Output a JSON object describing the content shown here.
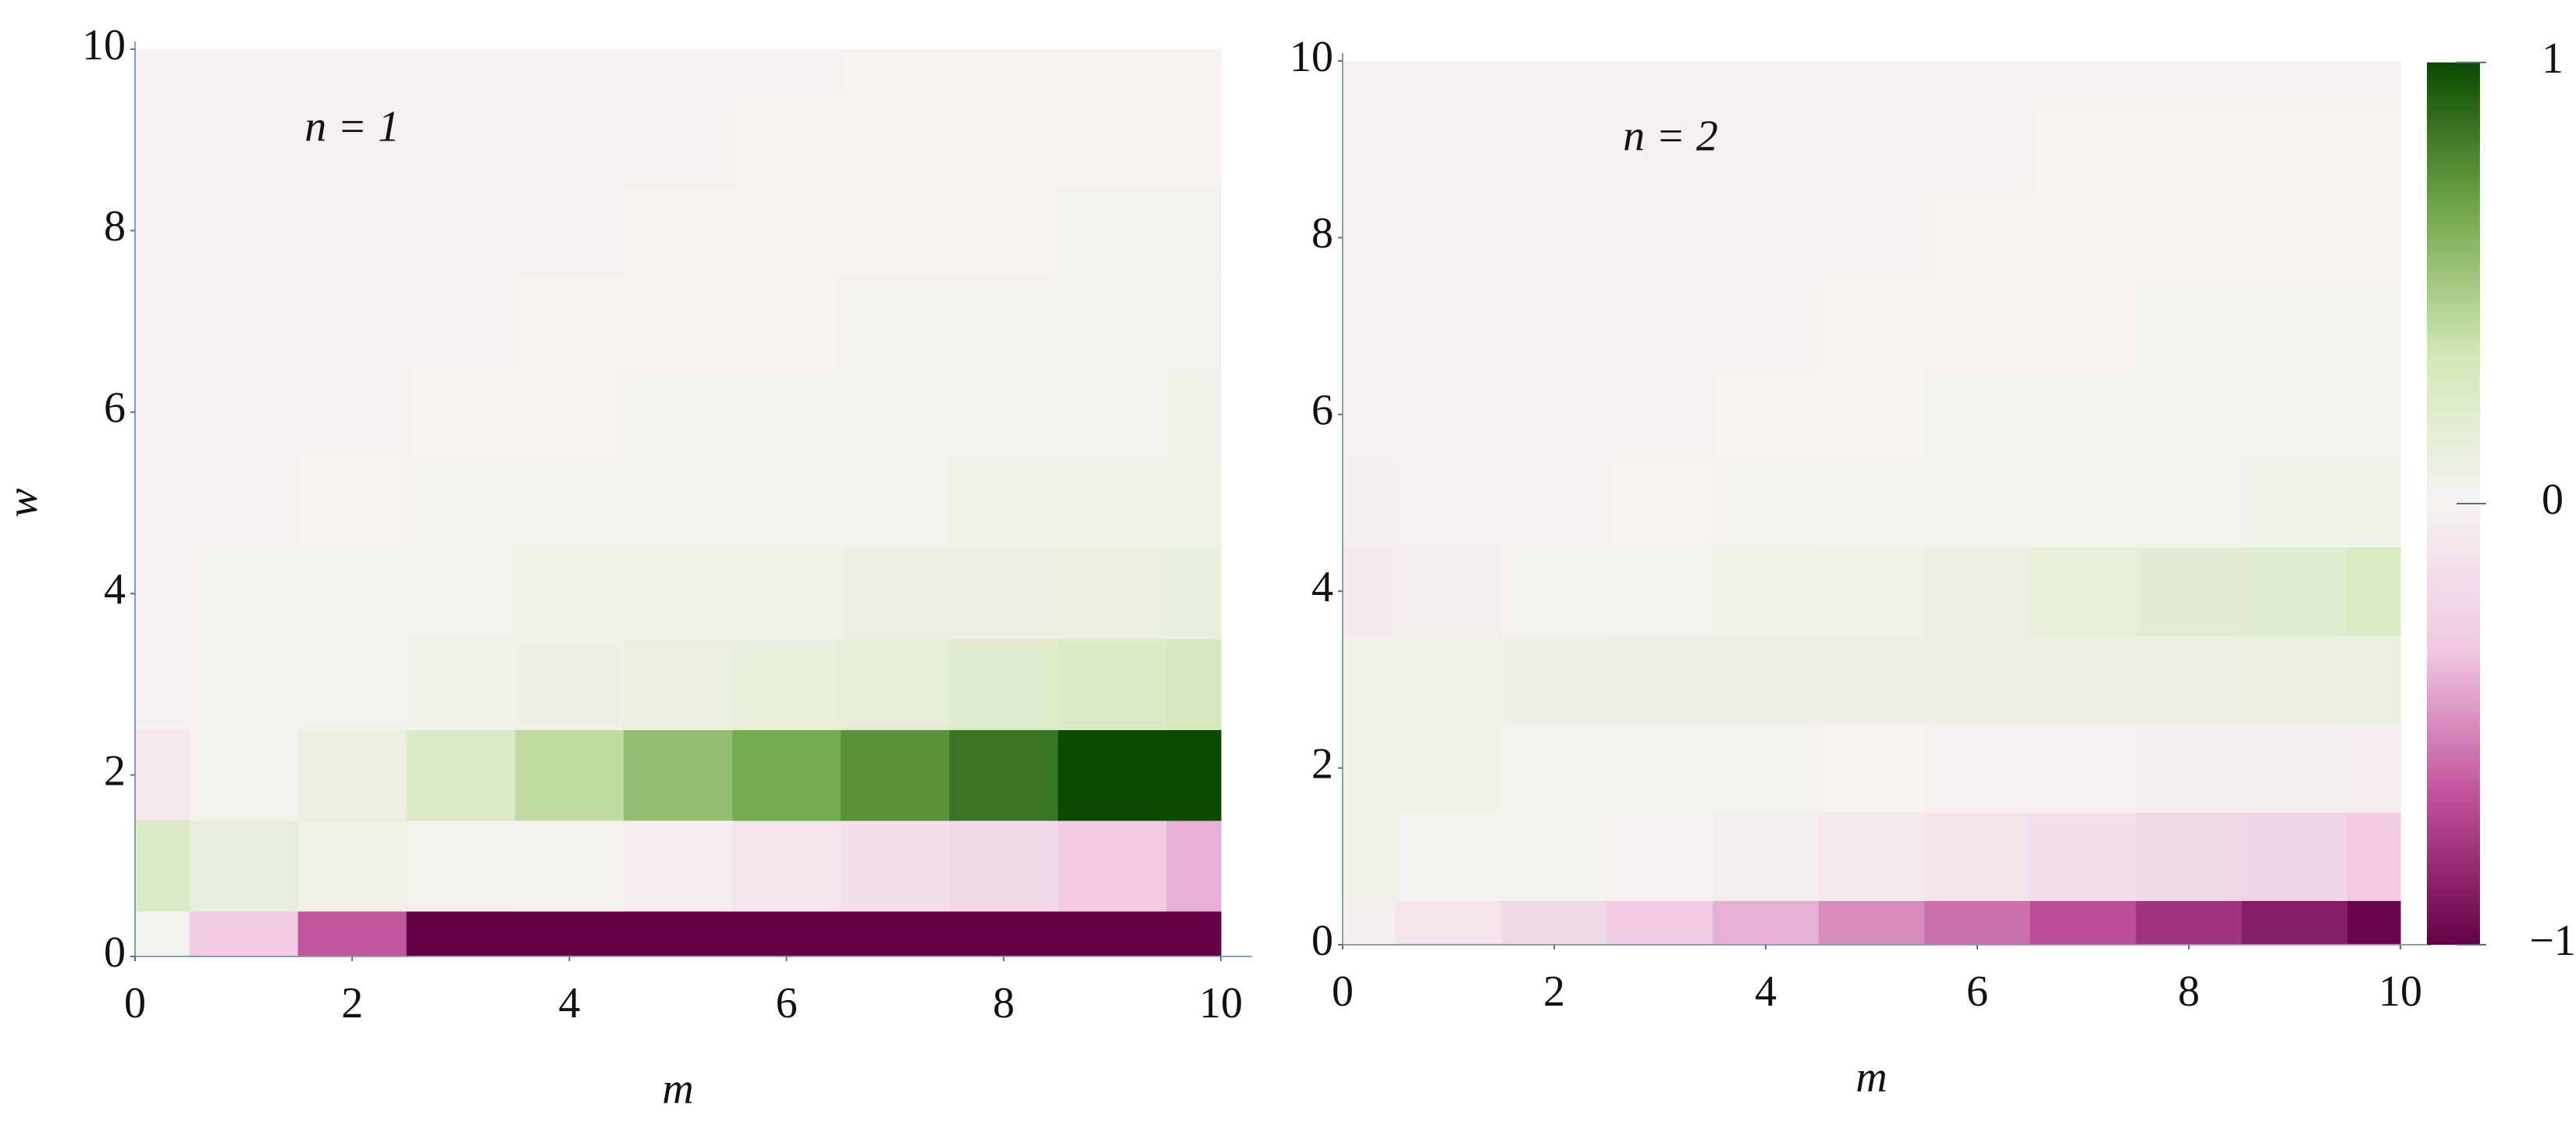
{
  "chart_data": [
    {
      "type": "heatmap",
      "annotation": "n = 1",
      "xlabel": "m",
      "ylabel": "w",
      "x": [
        0,
        1,
        2,
        3,
        4,
        5,
        6,
        7,
        8,
        9,
        10
      ],
      "y": [
        0,
        1,
        2,
        3,
        4,
        5,
        6,
        7,
        8,
        9,
        10
      ],
      "z": [
        [
          0.02,
          -0.3,
          -0.65,
          -1,
          -1,
          -1,
          -1,
          -1,
          -1,
          -1,
          -1
        ],
        [
          0.25,
          0.12,
          0.06,
          0.02,
          0.01,
          -0.05,
          -0.1,
          -0.15,
          -0.2,
          -0.3,
          -0.4
        ],
        [
          -0.08,
          0.02,
          0.1,
          0.25,
          0.4,
          0.55,
          0.65,
          0.75,
          0.85,
          1,
          1
        ],
        [
          -0.01,
          0.01,
          0.03,
          0.05,
          0.07,
          0.1,
          0.13,
          0.16,
          0.2,
          0.25,
          0.3
        ],
        [
          -0.01,
          0.01,
          0.02,
          0.03,
          0.04,
          0.05,
          0.06,
          0.08,
          0.09,
          0.1,
          0.12
        ],
        [
          -0.02,
          -0.01,
          0,
          0.01,
          0.02,
          0.02,
          0.03,
          0.03,
          0.04,
          0.05,
          0.06
        ],
        [
          -0.02,
          -0.01,
          -0.01,
          0,
          0,
          0.01,
          0.01,
          0.02,
          0.02,
          0.03,
          0.04
        ],
        [
          -0.02,
          -0.01,
          -0.01,
          -0.01,
          0,
          0,
          0,
          0.01,
          0.01,
          0.01,
          0.02
        ],
        [
          -0.02,
          -0.02,
          -0.01,
          -0.01,
          -0.01,
          0,
          0,
          0,
          0,
          0.01,
          0.01
        ],
        [
          -0.02,
          -0.02,
          -0.02,
          -0.01,
          -0.01,
          -0.01,
          0,
          0,
          0,
          0,
          0
        ],
        [
          -0.02,
          -0.02,
          -0.02,
          -0.02,
          -0.01,
          -0.01,
          -0.01,
          0,
          0,
          0,
          0
        ]
      ],
      "xlim": [
        0,
        10
      ],
      "ylim": [
        0,
        10
      ],
      "xticks": [
        0,
        2,
        4,
        6,
        8,
        10
      ],
      "yticks": [
        0,
        2,
        4,
        6,
        8,
        10
      ]
    },
    {
      "type": "heatmap",
      "annotation": "n = 2",
      "xlabel": "m",
      "x": [
        0,
        1,
        2,
        3,
        4,
        5,
        6,
        7,
        8,
        9,
        10
      ],
      "y": [
        0,
        1,
        2,
        3,
        4,
        5,
        6,
        7,
        8,
        9,
        10
      ],
      "z": [
        [
          -0.03,
          -0.1,
          -0.2,
          -0.3,
          -0.4,
          -0.5,
          -0.58,
          -0.68,
          -0.78,
          -0.88,
          -0.98
        ],
        [
          0.06,
          0.03,
          0.01,
          -0.01,
          -0.04,
          -0.08,
          -0.12,
          -0.16,
          -0.2,
          -0.24,
          -0.3
        ],
        [
          0.06,
          0.05,
          0.03,
          0.02,
          0.01,
          0,
          -0.01,
          -0.02,
          -0.03,
          -0.04,
          -0.05
        ],
        [
          0.05,
          0.06,
          0.07,
          0.07,
          0.08,
          0.08,
          0.09,
          0.09,
          0.09,
          0.1,
          0.1
        ],
        [
          -0.06,
          -0.04,
          0.01,
          0.02,
          0.04,
          0.06,
          0.09,
          0.13,
          0.17,
          0.21,
          0.28
        ],
        [
          -0.03,
          -0.02,
          -0.01,
          0,
          0.01,
          0.01,
          0.02,
          0.03,
          0.03,
          0.04,
          0.05
        ],
        [
          -0.02,
          -0.02,
          -0.01,
          -0.01,
          0,
          0,
          0.01,
          0.01,
          0.02,
          0.02,
          0.03
        ],
        [
          -0.02,
          -0.02,
          -0.01,
          -0.01,
          -0.01,
          0,
          0,
          0,
          0.01,
          0.01,
          0.01
        ],
        [
          -0.02,
          -0.02,
          -0.02,
          -0.01,
          -0.01,
          -0.01,
          0,
          0,
          0,
          0,
          0
        ],
        [
          -0.02,
          -0.02,
          -0.02,
          -0.02,
          -0.01,
          -0.01,
          -0.01,
          0,
          0,
          0,
          0
        ],
        [
          -0.02,
          -0.02,
          -0.02,
          -0.02,
          -0.02,
          -0.01,
          -0.01,
          -0.01,
          -0.01,
          -0.01,
          -0.01
        ]
      ],
      "xlim": [
        0,
        10
      ],
      "ylim": [
        0,
        10
      ],
      "xticks": [
        0,
        2,
        4,
        6,
        8,
        10
      ],
      "yticks": [
        0,
        2,
        4,
        6,
        8,
        10
      ],
      "colorbar": {
        "lim": [
          -1,
          1
        ],
        "ticks": [
          {
            "value": -1,
            "label": "−1"
          },
          0,
          1
        ],
        "colormap": [
          "#640046",
          "#c0509a",
          "#f0c8e2",
          "#f5f2f0",
          "#d2e8b8",
          "#72a84c",
          "#0b4a00"
        ]
      }
    }
  ]
}
